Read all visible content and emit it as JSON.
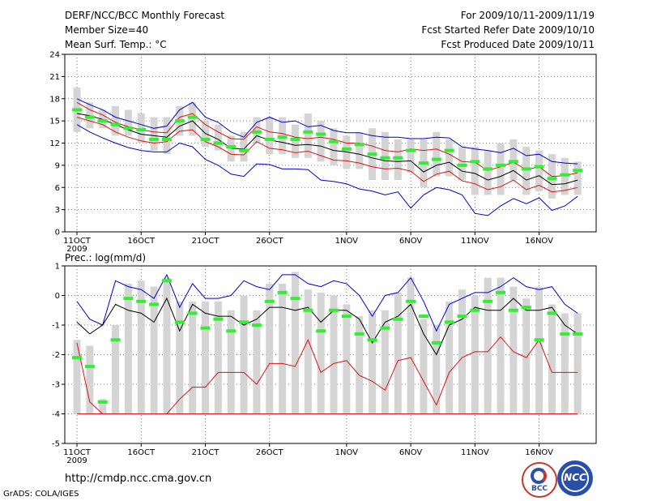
{
  "header": {
    "title": "DERF/NCC/BCC Monthly Forecast",
    "member_size": "Member Size=40",
    "variable": "Mean Surf. Temp.: °C",
    "period": "For 2009/10/11-2009/11/19",
    "started": "Fcst Started Refer Date 2009/10/10",
    "produced": "Fcst Produced Date 2009/10/11"
  },
  "footer": {
    "url": "http://cmdp.ncc.cma.gov.cn",
    "grads": "GrADS: COLA/IGES",
    "logo1": "BCC",
    "logo2": "NCC"
  },
  "colors": {
    "box": "#d4d4d4",
    "median": "#33ee33",
    "max": "#0000cc",
    "band": "#dd1111",
    "mean": "#000000",
    "grid": "#555555"
  },
  "chart_data": [
    {
      "type": "line",
      "title": "Mean Surf. Temp.: °C",
      "ylim": [
        0,
        24
      ],
      "yticks": [
        0,
        3,
        6,
        9,
        12,
        15,
        18,
        21,
        24
      ],
      "x": [
        1,
        2,
        3,
        4,
        5,
        6,
        7,
        8,
        9,
        10,
        11,
        12,
        13,
        14,
        15,
        16,
        17,
        18,
        19,
        20,
        21,
        22,
        23,
        24,
        25,
        26,
        27,
        28,
        29,
        30,
        31,
        32,
        33,
        34,
        35,
        36,
        37,
        38,
        39,
        40
      ],
      "xticks": [
        {
          "day": 1,
          "label": "11OCT",
          "sub": "2009"
        },
        {
          "day": 6,
          "label": "16OCT"
        },
        {
          "day": 11,
          "label": "21OCT"
        },
        {
          "day": 16,
          "label": "26OCT"
        },
        {
          "day": 22,
          "label": "1NOV"
        },
        {
          "day": 27,
          "label": "6NOV"
        },
        {
          "day": 32,
          "label": "11NOV"
        },
        {
          "day": 37,
          "label": "16NOV"
        }
      ],
      "series": [
        {
          "name": "ensemble max",
          "values": [
            18,
            17.2,
            16.5,
            15.5,
            15,
            14.5,
            14,
            14.3,
            16.5,
            17.5,
            15.5,
            14.8,
            13.5,
            12.8,
            14.8,
            15.5,
            14.8,
            15,
            14.2,
            14.4,
            13.7,
            13.4,
            13.4,
            13,
            12.8,
            12.8,
            12.6,
            12.6,
            12.8,
            12.7,
            11.5,
            11.2,
            11,
            10.7,
            11.3,
            10.3,
            10.5,
            9.5,
            9.3,
            9.2
          ]
        },
        {
          "name": "upper band",
          "values": [
            17.5,
            16.5,
            15.8,
            14.8,
            14.2,
            13.8,
            13.5,
            13.4,
            15.5,
            16,
            14.5,
            13.5,
            12.6,
            12.5,
            14.2,
            13.5,
            13.3,
            12.8,
            12.6,
            12.8,
            12.5,
            12,
            12,
            11.6,
            11,
            10.8,
            11.2,
            11,
            11.2,
            10.5,
            9.5,
            9.4,
            8.3,
            8.8,
            9.4,
            8.4,
            8.8,
            7.5,
            7.6,
            8
          ]
        },
        {
          "name": "ensemble mean",
          "values": [
            16,
            15.7,
            15.2,
            14.5,
            13.8,
            13.2,
            13,
            12.8,
            14.3,
            15,
            13.3,
            12.5,
            11.3,
            11.2,
            13,
            12.4,
            12.1,
            11.7,
            11.8,
            11.6,
            11,
            10.8,
            10.5,
            10,
            9.6,
            9.5,
            9.6,
            8.1,
            9,
            9.4,
            8.2,
            7.9,
            7,
            7.5,
            8.3,
            7,
            7.6,
            6.4,
            6.5,
            7
          ]
        },
        {
          "name": "lower band",
          "values": [
            15.5,
            15,
            14.5,
            13.5,
            12.8,
            12.3,
            12,
            12.2,
            13.6,
            13.8,
            12.2,
            11.5,
            10.5,
            10.4,
            12.2,
            11.3,
            11.1,
            10.7,
            10.9,
            10.3,
            9.7,
            9.6,
            9.3,
            8.8,
            8.5,
            8.6,
            8.2,
            6.8,
            7.8,
            8.2,
            6.9,
            6.5,
            5.7,
            6.1,
            7,
            5.7,
            6.3,
            5.4,
            5.6,
            6
          ]
        },
        {
          "name": "ensemble min",
          "values": [
            14.5,
            13.5,
            12.7,
            12,
            11.4,
            11,
            10.8,
            10.8,
            12,
            11.5,
            9.8,
            9,
            7.8,
            7.5,
            9.2,
            9.1,
            8.5,
            8.5,
            8.4,
            7,
            6.8,
            6.5,
            5.8,
            5.5,
            5,
            5.4,
            3.2,
            5,
            6,
            5.7,
            5,
            2.5,
            2.2,
            3.5,
            4.5,
            3.8,
            4.6,
            2.9,
            3.5,
            4.8
          ]
        },
        {
          "name": "box top",
          "values": [
            19.5,
            17.5,
            16.5,
            17,
            16.5,
            16,
            15.5,
            15.5,
            17,
            17.5,
            15,
            14.5,
            13,
            13.5,
            15.5,
            15.5,
            15.5,
            14.5,
            16,
            15,
            14,
            13,
            13.5,
            14,
            13.5,
            12.5,
            12.5,
            12.5,
            13.5,
            12.5,
            11.5,
            11.5,
            11,
            12,
            12.5,
            11.5,
            11,
            10.5,
            10,
            9.5
          ]
        },
        {
          "name": "box bottom",
          "values": [
            13.5,
            14,
            14,
            13,
            13,
            12,
            11,
            10.5,
            13,
            13,
            11.5,
            11,
            9.5,
            9.5,
            12,
            10.5,
            10.5,
            10,
            10,
            9.5,
            9,
            8.5,
            8.5,
            7,
            7,
            7,
            8,
            6,
            7.5,
            7.5,
            7,
            5,
            5,
            5,
            7,
            5,
            5.5,
            4.5,
            5,
            5
          ]
        },
        {
          "name": "median",
          "values": [
            16.5,
            15.5,
            15,
            14.5,
            14,
            13.8,
            12.5,
            12.5,
            15,
            15.5,
            12.5,
            12,
            11.5,
            11,
            13.5,
            12.5,
            12.8,
            12.5,
            13.5,
            13.2,
            12.2,
            11.2,
            11.8,
            10.5,
            10,
            10,
            11,
            9.3,
            9.8,
            11,
            9,
            9.5,
            8.5,
            9,
            9.5,
            8.5,
            8.8,
            7.2,
            7.7,
            8.3
          ]
        }
      ]
    },
    {
      "type": "line",
      "title": "Prec.: log(mm/d)",
      "ylim": [
        -5,
        1
      ],
      "yticks": [
        -5,
        -4,
        -3,
        -2,
        -1,
        0,
        1
      ],
      "x": [
        1,
        2,
        3,
        4,
        5,
        6,
        7,
        8,
        9,
        10,
        11,
        12,
        13,
        14,
        15,
        16,
        17,
        18,
        19,
        20,
        21,
        22,
        23,
        24,
        25,
        26,
        27,
        28,
        29,
        30,
        31,
        32,
        33,
        34,
        35,
        36,
        37,
        38,
        39,
        40
      ],
      "xticks": [
        {
          "day": 1,
          "label": "11OCT",
          "sub": "2009"
        },
        {
          "day": 6,
          "label": "16OCT"
        },
        {
          "day": 11,
          "label": "21OCT"
        },
        {
          "day": 16,
          "label": "26OCT"
        },
        {
          "day": 22,
          "label": "1NOV"
        },
        {
          "day": 27,
          "label": "6NOV"
        },
        {
          "day": 32,
          "label": "11NOV"
        },
        {
          "day": 37,
          "label": "16NOV"
        }
      ],
      "series": [
        {
          "name": "ensemble max",
          "values": [
            -0.2,
            -0.8,
            -1,
            0.5,
            0.3,
            0.2,
            -0.1,
            0.7,
            -0.4,
            0.4,
            -0.1,
            -0.1,
            0,
            0.5,
            0.3,
            0.2,
            0.7,
            0.7,
            0.4,
            0.3,
            0.5,
            0.4,
            0,
            -0.7,
            0,
            0.1,
            0.6,
            -0.2,
            -1.2,
            -0.3,
            -0.1,
            0.1,
            0.1,
            0.3,
            0.6,
            0.3,
            0.2,
            0.3,
            -0.3,
            -0.6
          ]
        },
        {
          "name": "ensemble mean",
          "values": [
            -0.9,
            -1.3,
            -1,
            -0.3,
            -0.5,
            -0.6,
            -0.9,
            -0.1,
            -1.2,
            -0.3,
            -0.6,
            -0.7,
            -0.7,
            -1,
            -0.8,
            -0.4,
            -0.4,
            -0.5,
            -0.4,
            -0.9,
            -0.5,
            -0.5,
            -0.8,
            -1.6,
            -0.9,
            -0.7,
            -0.3,
            -1.3,
            -2,
            -1,
            -0.8,
            -0.4,
            -0.5,
            -0.5,
            -0.1,
            -0.5,
            -0.5,
            -0.4,
            -1,
            -1.3
          ]
        },
        {
          "name": "lower band",
          "values": [
            -1.6,
            -3.6,
            -4,
            -4,
            -4,
            -4,
            -4,
            -4,
            -3.5,
            -3.1,
            -3.1,
            -2.6,
            -2.6,
            -2.6,
            -3,
            -2.3,
            -2.3,
            -2.4,
            -1.5,
            -2.6,
            -2.3,
            -2.2,
            -2.7,
            -2.9,
            -3.2,
            -2.2,
            -2.1,
            -2.9,
            -3.7,
            -2.6,
            -2.1,
            -1.9,
            -1.9,
            -1.4,
            -1.9,
            -2.1,
            -1.5,
            -2.6,
            -2.6,
            -2.6
          ]
        },
        {
          "name": "ensemble min",
          "values": [
            -4,
            -4,
            -4,
            -4,
            -4,
            -4,
            -4,
            -4,
            -4,
            -4,
            -4,
            -4,
            -4,
            -4,
            -4,
            -4,
            -4,
            -4,
            -4,
            -4,
            -4,
            -4,
            -4,
            -4,
            -4,
            -4,
            -4,
            -4,
            -4,
            -4,
            -4,
            -4,
            -4,
            -4,
            -4,
            -4,
            -4,
            -4,
            -4,
            -4
          ]
        },
        {
          "name": "box top",
          "values": [
            -1.5,
            -1.7,
            -3.5,
            -1,
            0.4,
            0.5,
            0.3,
            0.6,
            -0.2,
            -0.2,
            -0.2,
            -0.2,
            -0.5,
            0,
            -0.5,
            0.4,
            0.4,
            0.8,
            0.2,
            0.1,
            0,
            -0.3,
            -0.7,
            -0.5,
            -0.5,
            0.1,
            0.6,
            -0.8,
            -1,
            -0.2,
            0.2,
            0,
            0.6,
            0.6,
            0.3,
            -0.1,
            0.3,
            -0.3,
            -0.6,
            -0.6
          ]
        },
        {
          "name": "box bottom",
          "values": [
            -4,
            -4,
            -4,
            -4,
            -4,
            -4,
            -4,
            -4,
            -4,
            -4,
            -4,
            -4,
            -4,
            -4,
            -4,
            -4,
            -4,
            -4,
            -4,
            -4,
            -4,
            -4,
            -4,
            -4,
            -4,
            -4,
            -4,
            -4,
            -4,
            -4,
            -4,
            -4,
            -4,
            -4,
            -4,
            -4,
            -4,
            -4,
            -4,
            -4
          ]
        },
        {
          "name": "median",
          "values": [
            -2.1,
            -2.4,
            -3.6,
            -1.5,
            -0.1,
            -0.2,
            -0.3,
            0.5,
            -0.9,
            -0.6,
            -1.1,
            -0.8,
            -1.2,
            -0.9,
            -1,
            -0.2,
            0.1,
            -0.1,
            -0.5,
            -1.2,
            -0.5,
            -0.7,
            -1.3,
            -1.5,
            -1.1,
            -0.8,
            -0.2,
            -0.7,
            -1.6,
            -0.9,
            -0.7,
            -0.5,
            -0.2,
            0.1,
            -0.5,
            -0.4,
            -1.5,
            -0.6,
            -1.3,
            -1.3
          ]
        }
      ]
    }
  ]
}
